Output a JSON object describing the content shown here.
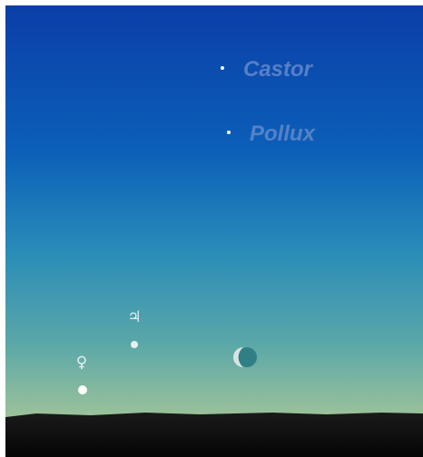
{
  "stars": [
    {
      "label": "Castor"
    },
    {
      "label": "Pollux"
    }
  ],
  "planets": [
    {
      "symbol": "♃"
    },
    {
      "symbol": "♀"
    }
  ]
}
